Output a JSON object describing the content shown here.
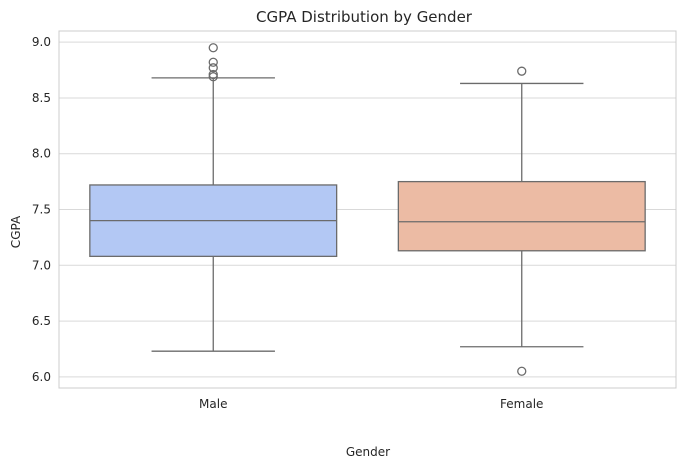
{
  "chart_data": {
    "type": "box",
    "title": "CGPA Distribution by Gender",
    "xlabel": "Gender",
    "ylabel": "CGPA",
    "ylim": [
      5.9,
      9.1
    ],
    "yticks": [
      6.0,
      6.5,
      7.0,
      7.5,
      8.0,
      8.5,
      9.0
    ],
    "ytick_labels": [
      "6.0",
      "6.5",
      "7.0",
      "7.5",
      "8.0",
      "8.5",
      "9.0"
    ],
    "grid": "horizontal",
    "categories": [
      "Male",
      "Female"
    ],
    "boxes": [
      {
        "category": "Male",
        "whisker_low": 6.23,
        "q1": 7.08,
        "median": 7.4,
        "q3": 7.72,
        "whisker_high": 8.68,
        "outliers": [
          8.69,
          8.71,
          8.77,
          8.82,
          8.95
        ],
        "color": "#b3c8f4"
      },
      {
        "category": "Female",
        "whisker_low": 6.27,
        "q1": 7.13,
        "median": 7.39,
        "q3": 7.75,
        "whisker_high": 8.63,
        "outliers": [
          6.05,
          8.74
        ],
        "color": "#ecbba4"
      }
    ],
    "line_color": "#6b6b6b",
    "grid_color": "#d9d9d9",
    "spine_color": "#cccccc"
  }
}
